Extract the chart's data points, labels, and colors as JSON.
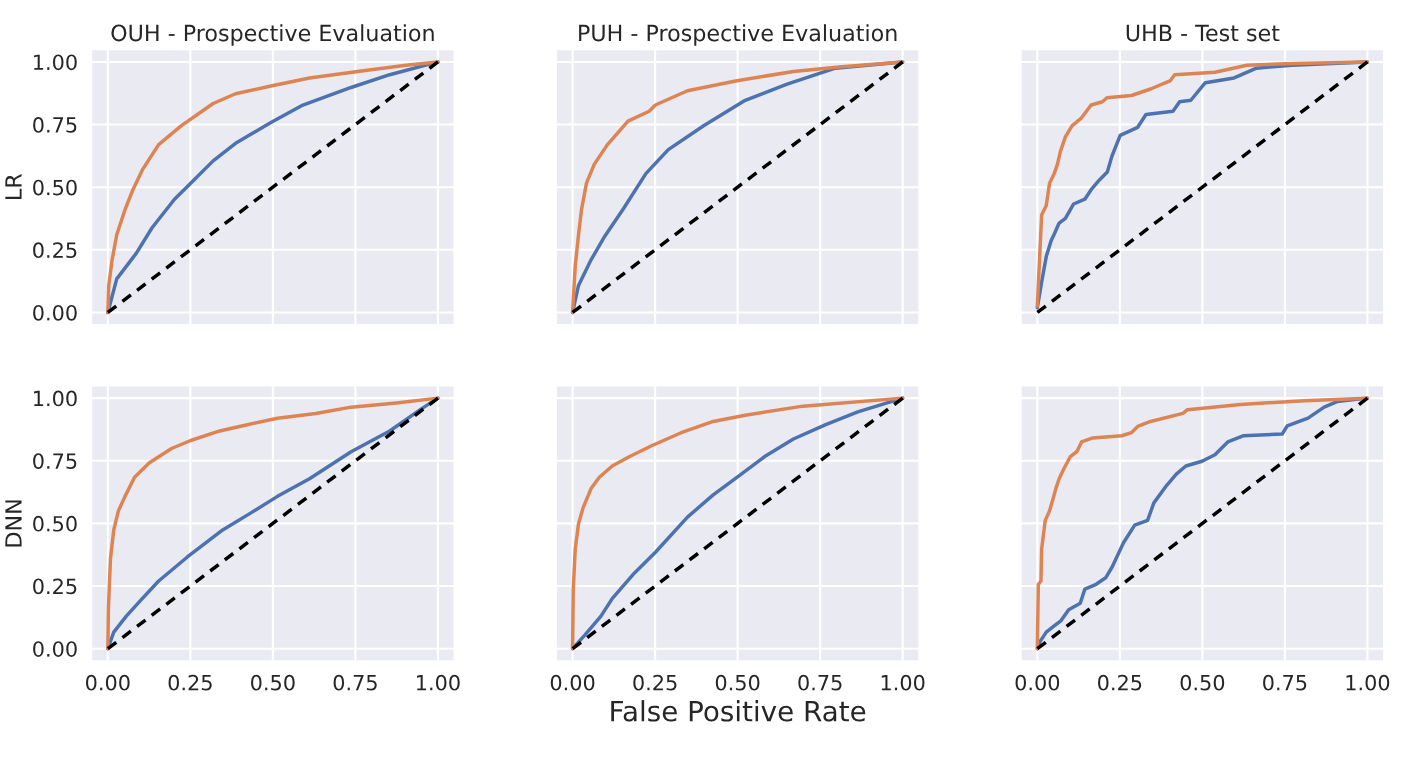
{
  "chart_data": [
    {
      "type": "line",
      "title": "OUH - Prospective Evaluation",
      "ylabel": "LR",
      "xlim": [
        -0.05,
        1.05
      ],
      "ylim": [
        -0.05,
        1.05
      ],
      "xticks": [
        0,
        0.25,
        0.5,
        0.75,
        1
      ],
      "yticks": [
        {
          "value": 0,
          "label": "0.00"
        },
        {
          "value": 0.25,
          "label": "0.25"
        },
        {
          "value": 0.5,
          "label": "0.50"
        },
        {
          "value": 0.75,
          "label": "0.75"
        },
        {
          "value": 1,
          "label": "1.00"
        }
      ],
      "tick_labels": "y",
      "grid": true,
      "line_style": "solid",
      "series": [
        {
          "color": "#4c72b0",
          "x": [
            0,
            0.027,
            0.086,
            0.134,
            0.202,
            0.251,
            0.319,
            0.387,
            0.494,
            0.591,
            0.737,
            0.854,
            1
          ],
          "values": [
            0,
            0.134,
            0.236,
            0.338,
            0.452,
            0.516,
            0.605,
            0.675,
            0.758,
            0.828,
            0.898,
            0.949,
            1
          ]
        },
        {
          "color": "#dd8452",
          "x": [
            0,
            0.003,
            0.013,
            0.027,
            0.052,
            0.076,
            0.105,
            0.154,
            0.222,
            0.319,
            0.387,
            0.494,
            0.611,
            0.757,
            0.903,
            1
          ],
          "values": [
            0,
            0.11,
            0.21,
            0.31,
            0.41,
            0.49,
            0.57,
            0.67,
            0.745,
            0.834,
            0.873,
            0.904,
            0.936,
            0.962,
            0.987,
            1
          ]
        },
        {
          "color": "#000000",
          "line_style": "dashed",
          "x": [
            0,
            1
          ],
          "values": [
            0,
            1
          ]
        }
      ]
    },
    {
      "type": "line",
      "title": "PUH - Prospective Evaluation",
      "xlim": [
        -0.05,
        1.05
      ],
      "ylim": [
        -0.05,
        1.05
      ],
      "xticks": [
        0,
        0.25,
        0.5,
        0.75,
        1
      ],
      "yticks": [
        0,
        0.25,
        0.5,
        0.75,
        1
      ],
      "tick_labels": false,
      "grid": true,
      "line_style": "solid",
      "series": [
        {
          "color": "#4c72b0",
          "x": [
            0,
            0.018,
            0.056,
            0.095,
            0.154,
            0.222,
            0.29,
            0.397,
            0.523,
            0.65,
            0.796,
            1
          ],
          "values": [
            0,
            0.108,
            0.21,
            0.299,
            0.414,
            0.554,
            0.65,
            0.745,
            0.847,
            0.911,
            0.975,
            1
          ]
        },
        {
          "color": "#dd8452",
          "x": [
            0,
            0.008,
            0.018,
            0.027,
            0.042,
            0.066,
            0.105,
            0.168,
            0.232,
            0.251,
            0.348,
            0.494,
            0.669,
            0.815,
            1
          ],
          "values": [
            0,
            0.185,
            0.31,
            0.41,
            0.516,
            0.592,
            0.669,
            0.764,
            0.803,
            0.828,
            0.885,
            0.924,
            0.962,
            0.981,
            1
          ]
        },
        {
          "color": "#000000",
          "line_style": "dashed",
          "x": [
            0,
            1
          ],
          "values": [
            0,
            1
          ]
        }
      ]
    },
    {
      "type": "line",
      "title": "UHB - Test set",
      "xlim": [
        -0.05,
        1.05
      ],
      "ylim": [
        -0.05,
        1.05
      ],
      "xticks": [
        0,
        0.25,
        0.5,
        0.75,
        1
      ],
      "yticks": [
        0,
        0.25,
        0.5,
        0.75,
        1
      ],
      "tick_labels": false,
      "grid": true,
      "line_style": "solid",
      "series": [
        {
          "color": "#4c72b0",
          "x": [
            0,
            0.013,
            0.027,
            0.042,
            0.051,
            0.066,
            0.085,
            0.11,
            0.144,
            0.163,
            0.188,
            0.212,
            0.226,
            0.251,
            0.304,
            0.329,
            0.411,
            0.431,
            0.465,
            0.509,
            0.596,
            0.664,
            0.771,
            1
          ],
          "values": [
            0.019,
            0.121,
            0.223,
            0.287,
            0.312,
            0.357,
            0.376,
            0.433,
            0.452,
            0.49,
            0.529,
            0.561,
            0.624,
            0.707,
            0.739,
            0.79,
            0.803,
            0.841,
            0.847,
            0.917,
            0.936,
            0.975,
            0.987,
            1
          ]
        },
        {
          "color": "#dd8452",
          "x": [
            0,
            0.013,
            0.027,
            0.037,
            0.051,
            0.061,
            0.07,
            0.085,
            0.105,
            0.134,
            0.163,
            0.197,
            0.211,
            0.285,
            0.343,
            0.402,
            0.416,
            0.538,
            0.635,
            0.781,
            1
          ],
          "values": [
            0.025,
            0.389,
            0.427,
            0.516,
            0.554,
            0.592,
            0.643,
            0.701,
            0.745,
            0.777,
            0.828,
            0.841,
            0.857,
            0.866,
            0.892,
            0.924,
            0.949,
            0.959,
            0.987,
            0.994,
            1
          ]
        },
        {
          "color": "#000000",
          "line_style": "dashed",
          "x": [
            0,
            1
          ],
          "values": [
            0,
            1
          ]
        }
      ]
    },
    {
      "type": "line",
      "ylabel": "DNN",
      "xlim": [
        -0.05,
        1.05
      ],
      "ylim": [
        -0.05,
        1.05
      ],
      "xticks": [
        {
          "value": 0,
          "label": "0.00"
        },
        {
          "value": 0.25,
          "label": "0.25"
        },
        {
          "value": 0.5,
          "label": "0.50"
        },
        {
          "value": 0.75,
          "label": "0.75"
        },
        {
          "value": 1,
          "label": "1.00"
        }
      ],
      "yticks": [
        {
          "value": 0,
          "label": "0.00"
        },
        {
          "value": 0.25,
          "label": "0.25"
        },
        {
          "value": 0.5,
          "label": "0.50"
        },
        {
          "value": 0.75,
          "label": "0.75"
        },
        {
          "value": 1,
          "label": "1.00"
        }
      ],
      "grid": true,
      "line_style": "solid",
      "series": [
        {
          "color": "#4c72b0",
          "x": [
            0,
            0.018,
            0.056,
            0.1,
            0.154,
            0.241,
            0.348,
            0.436,
            0.514,
            0.611,
            0.737,
            0.854,
            0.951,
            1
          ],
          "values": [
            0,
            0.066,
            0.13,
            0.194,
            0.27,
            0.366,
            0.474,
            0.544,
            0.608,
            0.678,
            0.786,
            0.869,
            0.958,
            1
          ]
        },
        {
          "color": "#dd8452",
          "x": [
            0,
            0.002,
            0.008,
            0.018,
            0.032,
            0.052,
            0.081,
            0.125,
            0.193,
            0.251,
            0.339,
            0.416,
            0.514,
            0.63,
            0.737,
            0.874,
            1
          ],
          "values": [
            0,
            0.168,
            0.359,
            0.474,
            0.55,
            0.608,
            0.684,
            0.741,
            0.799,
            0.831,
            0.869,
            0.892,
            0.92,
            0.939,
            0.964,
            0.981,
            1
          ]
        },
        {
          "color": "#000000",
          "line_style": "dashed",
          "x": [
            0,
            1
          ],
          "values": [
            0,
            1
          ]
        }
      ]
    },
    {
      "type": "line",
      "xlabel": "False Positive Rate",
      "xlim": [
        -0.05,
        1.05
      ],
      "ylim": [
        -0.05,
        1.05
      ],
      "xticks": [
        {
          "value": 0,
          "label": "0.00"
        },
        {
          "value": 0.25,
          "label": "0.25"
        },
        {
          "value": 0.5,
          "label": "0.50"
        },
        {
          "value": 0.75,
          "label": "0.75"
        },
        {
          "value": 1,
          "label": "1.00"
        }
      ],
      "yticks": [
        0,
        0.25,
        0.5,
        0.75,
        1
      ],
      "tick_labels": "x",
      "grid": true,
      "line_style": "solid",
      "series": [
        {
          "color": "#4c72b0",
          "x": [
            0,
            0.037,
            0.086,
            0.12,
            0.183,
            0.251,
            0.348,
            0.426,
            0.504,
            0.582,
            0.669,
            0.767,
            0.864,
            1
          ],
          "values": [
            0,
            0.054,
            0.13,
            0.2,
            0.296,
            0.385,
            0.525,
            0.614,
            0.69,
            0.767,
            0.837,
            0.894,
            0.945,
            1
          ]
        },
        {
          "color": "#dd8452",
          "x": [
            0,
            0.002,
            0.008,
            0.018,
            0.032,
            0.056,
            0.081,
            0.12,
            0.173,
            0.241,
            0.329,
            0.426,
            0.523,
            0.698,
            1
          ],
          "values": [
            0,
            0.232,
            0.397,
            0.499,
            0.563,
            0.639,
            0.684,
            0.729,
            0.767,
            0.811,
            0.862,
            0.907,
            0.932,
            0.968,
            1
          ]
        },
        {
          "color": "#000000",
          "line_style": "dashed",
          "x": [
            0,
            1
          ],
          "values": [
            0,
            1
          ]
        }
      ]
    },
    {
      "type": "line",
      "xlim": [
        -0.05,
        1.05
      ],
      "ylim": [
        -0.05,
        1.05
      ],
      "xticks": [
        {
          "value": 0,
          "label": "0.00"
        },
        {
          "value": 0.25,
          "label": "0.25"
        },
        {
          "value": 0.5,
          "label": "0.50"
        },
        {
          "value": 0.75,
          "label": "0.75"
        },
        {
          "value": 1,
          "label": "1.00"
        }
      ],
      "yticks": [
        0,
        0.25,
        0.5,
        0.75,
        1
      ],
      "tick_labels": "x",
      "grid": true,
      "line_style": "solid",
      "series": [
        {
          "color": "#4c72b0",
          "x": [
            0,
            0.008,
            0.027,
            0.052,
            0.071,
            0.095,
            0.13,
            0.144,
            0.178,
            0.207,
            0.227,
            0.261,
            0.295,
            0.334,
            0.353,
            0.392,
            0.421,
            0.45,
            0.499,
            0.538,
            0.577,
            0.625,
            0.742,
            0.757,
            0.82,
            0.869,
            0.908,
            1
          ],
          "values": [
            0,
            0.028,
            0.066,
            0.092,
            0.111,
            0.155,
            0.181,
            0.238,
            0.257,
            0.283,
            0.327,
            0.423,
            0.493,
            0.512,
            0.582,
            0.652,
            0.697,
            0.729,
            0.748,
            0.774,
            0.825,
            0.85,
            0.857,
            0.889,
            0.92,
            0.964,
            0.986,
            1
          ]
        },
        {
          "color": "#dd8452",
          "x": [
            0,
            0.003,
            0.011,
            0.013,
            0.024,
            0.037,
            0.047,
            0.056,
            0.066,
            0.08,
            0.1,
            0.12,
            0.134,
            0.168,
            0.256,
            0.285,
            0.304,
            0.343,
            0.441,
            0.455,
            0.616,
            0.81,
            1
          ],
          "values": [
            0,
            0.257,
            0.27,
            0.397,
            0.512,
            0.55,
            0.595,
            0.639,
            0.678,
            0.717,
            0.767,
            0.787,
            0.825,
            0.841,
            0.85,
            0.862,
            0.887,
            0.907,
            0.939,
            0.954,
            0.975,
            0.99,
            1
          ]
        },
        {
          "color": "#000000",
          "line_style": "dashed",
          "x": [
            0,
            1
          ],
          "values": [
            0,
            1
          ]
        }
      ]
    }
  ]
}
